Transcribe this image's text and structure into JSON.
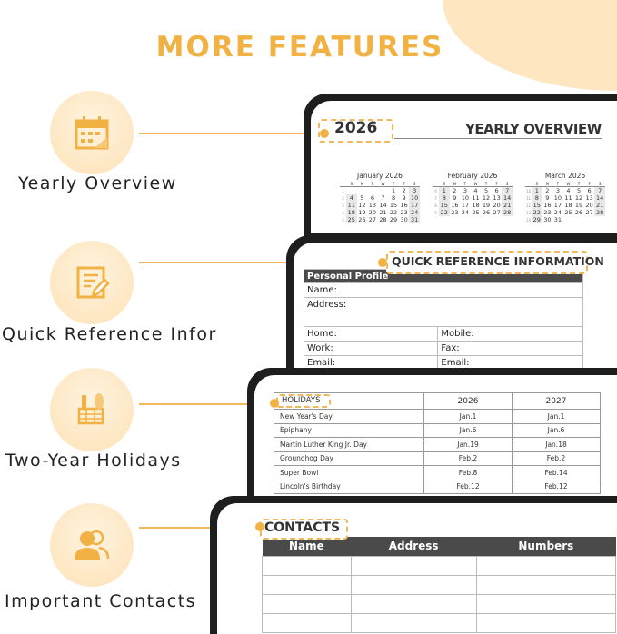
{
  "title": "MORE FEATURES",
  "colors": {
    "accent": "#f2b143",
    "peach": "#fde6c0",
    "frame": "#1e1e1e"
  },
  "features": [
    {
      "label": "Yearly Overview",
      "icon": "calendar-icon"
    },
    {
      "label": "Quick Reference Infor",
      "icon": "notepad-pencil-icon"
    },
    {
      "label": "Two-Year Holidays",
      "icon": "groceries-basket-icon"
    },
    {
      "label": "Important Contacts",
      "icon": "contacts-people-icon"
    }
  ],
  "yearly": {
    "year": "2026",
    "heading": "YEARLY OVERVIEW",
    "weekdays": [
      "S",
      "M",
      "T",
      "W",
      "T",
      "F",
      "S"
    ],
    "months": [
      {
        "name": "January 2026",
        "weeks": [
          {
            "n": "1",
            "d": [
              "",
              "",
              "",
              "",
              "1",
              "2",
              "3"
            ]
          },
          {
            "n": "2",
            "d": [
              "4",
              "5",
              "6",
              "7",
              "8",
              "9",
              "10"
            ]
          },
          {
            "n": "3",
            "d": [
              "11",
              "12",
              "13",
              "14",
              "15",
              "16",
              "17"
            ]
          },
          {
            "n": "4",
            "d": [
              "18",
              "19",
              "20",
              "21",
              "22",
              "23",
              "24"
            ]
          },
          {
            "n": "5",
            "d": [
              "25",
              "26",
              "27",
              "28",
              "29",
              "30",
              "31"
            ]
          }
        ]
      },
      {
        "name": "February 2026",
        "weeks": [
          {
            "n": "6",
            "d": [
              "1",
              "2",
              "3",
              "4",
              "5",
              "6",
              "7"
            ]
          },
          {
            "n": "7",
            "d": [
              "8",
              "9",
              "10",
              "11",
              "12",
              "13",
              "14"
            ]
          },
          {
            "n": "8",
            "d": [
              "15",
              "16",
              "17",
              "18",
              "19",
              "20",
              "21"
            ]
          },
          {
            "n": "9",
            "d": [
              "22",
              "23",
              "24",
              "25",
              "26",
              "27",
              "28"
            ]
          }
        ]
      },
      {
        "name": "March 2026",
        "weeks": [
          {
            "n": "10",
            "d": [
              "1",
              "2",
              "3",
              "4",
              "5",
              "6",
              "7"
            ]
          },
          {
            "n": "11",
            "d": [
              "8",
              "9",
              "10",
              "11",
              "12",
              "13",
              "14"
            ]
          },
          {
            "n": "12",
            "d": [
              "15",
              "16",
              "17",
              "18",
              "19",
              "20",
              "21"
            ]
          },
          {
            "n": "13",
            "d": [
              "22",
              "23",
              "24",
              "25",
              "26",
              "27",
              "28"
            ]
          },
          {
            "n": "14",
            "d": [
              "29",
              "30",
              "31",
              "",
              "",
              "",
              ""
            ]
          }
        ]
      }
    ]
  },
  "quickref": {
    "heading": "QUICK REFERENCE INFORMATION",
    "section": "Personal Profile",
    "name": "Name:",
    "address": "Address:",
    "home": "Home:",
    "mobile": "Mobile:",
    "work": "Work:",
    "fax": "Fax:",
    "email1": "Email:",
    "email2": "Email:"
  },
  "holidays": {
    "heading": "HOLIDAYS",
    "years": [
      "2026",
      "2027"
    ],
    "rows": [
      [
        "New Year's Day",
        "Jan.1",
        "Jan.1"
      ],
      [
        "Epiphany",
        "Jan.6",
        "Jan.6"
      ],
      [
        "Martin Luther King Jr. Day",
        "Jan.19",
        "Jan.18"
      ],
      [
        "Groundhog Day",
        "Feb.2",
        "Feb.2"
      ],
      [
        "Super Bowl",
        "Feb.8",
        "Feb.14"
      ],
      [
        "Lincoln's Birthday",
        "Feb.12",
        "Feb.12"
      ]
    ]
  },
  "contacts": {
    "heading": "CONTACTS",
    "columns": [
      "Name",
      "Address",
      "Numbers"
    ]
  }
}
